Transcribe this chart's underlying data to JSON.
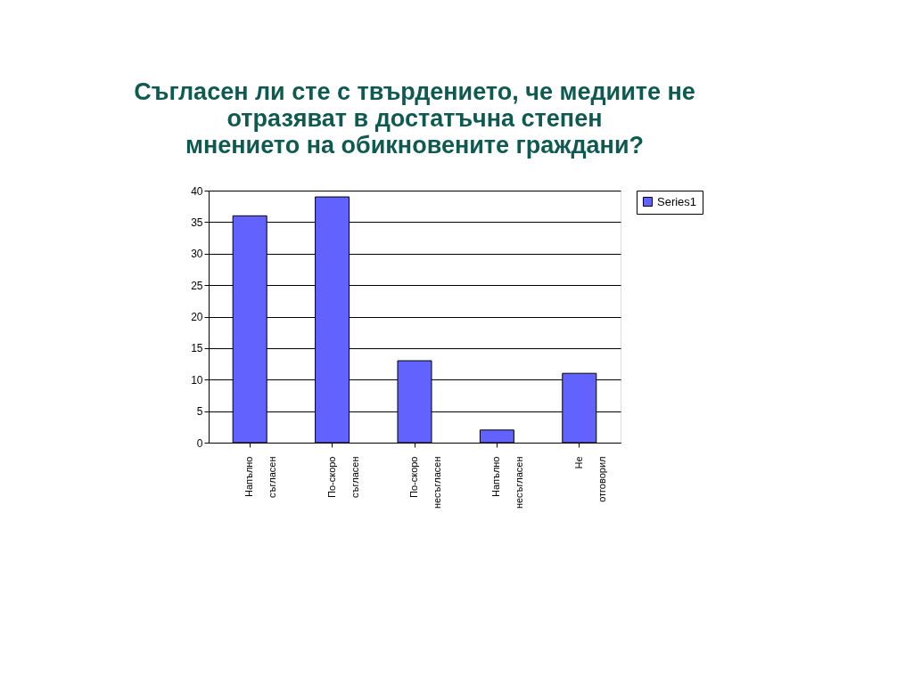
{
  "chart_data": {
    "type": "bar",
    "title": "Съгласен ли сте с твърдението, че медиите не\nотразяват в достатъчна степен\nмнението на обикновените граждани?",
    "categories": [
      "Напълно съгласен",
      "По-скоро съгласен",
      "По-скоро несъгласен",
      "Напълно несъгласен",
      "Не отговорил"
    ],
    "series": [
      {
        "name": "Series1",
        "color": "#6262ff",
        "values": [
          36,
          39,
          13,
          2,
          11
        ]
      }
    ],
    "ylim": [
      0,
      40
    ],
    "yticks": [
      0,
      5,
      10,
      15,
      20,
      25,
      30,
      35,
      40
    ],
    "grid": "y",
    "legend": "right"
  }
}
